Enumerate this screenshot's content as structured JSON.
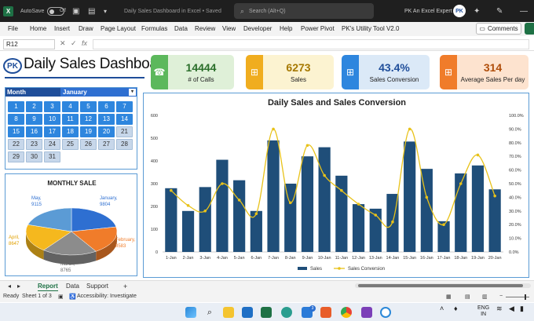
{
  "titlebar": {
    "autosave_label": "AutoSave",
    "autosave_state": "Off",
    "doc_title": "Daily Sales Dashboard in Excel • Saved",
    "search_placeholder": "Search (Alt+Q)",
    "user_name": "PK An Excel Expert",
    "avatar_initials": "PK"
  },
  "menu": {
    "items": [
      "File",
      "Home",
      "Insert",
      "Draw",
      "Page Layout",
      "Formulas",
      "Data",
      "Review",
      "View",
      "Developer",
      "Help",
      "Power Pivot",
      "PK's Utility Tool V2.0"
    ],
    "comments_label": "Comments"
  },
  "formula_bar": {
    "name_box": "R12",
    "cancel": "✕",
    "confirm": "✓",
    "fx": "fx",
    "value": ""
  },
  "dashboard": {
    "logo_text": "PK",
    "title": "Daily Sales Dashboard"
  },
  "kpis": [
    {
      "value": "14444",
      "label": "# of Calls",
      "color": "#5cb85c",
      "bg": "#dff0d8",
      "icon": "phone-agent-icon"
    },
    {
      "value": "6273",
      "label": "Sales",
      "color": "#f0ad1f",
      "bg": "#fcf3d1",
      "icon": "cart-icon"
    },
    {
      "value": "43.4%",
      "label": "Sales Conversion",
      "color": "#2e86de",
      "bg": "#dbe9f7",
      "icon": "cart-icon"
    },
    {
      "value": "314",
      "label": "Average Sales Per day",
      "color": "#f07c2a",
      "bg": "#fde3cf",
      "icon": "cart-icon"
    }
  ],
  "calendar": {
    "month_label": "Month",
    "month_value": "January",
    "filter_icon": "▾",
    "days": [
      "1",
      "2",
      "3",
      "4",
      "5",
      "6",
      "7",
      "8",
      "9",
      "10",
      "11",
      "12",
      "13",
      "14",
      "15",
      "16",
      "17",
      "18",
      "19",
      "20",
      "21",
      "22",
      "23",
      "24",
      "25",
      "26",
      "27",
      "28",
      "29",
      "30",
      "31"
    ],
    "active_days": 20
  },
  "monthly_sale": {
    "title": "MONTHLY SALE",
    "slices": [
      {
        "name": "January",
        "value": 9804,
        "color": "#2e6fd1"
      },
      {
        "name": "February",
        "value": 8583,
        "color": "#f07c2a"
      },
      {
        "name": "March",
        "value": 8765,
        "color": "#8c8c8c"
      },
      {
        "name": "April",
        "value": 8647,
        "color": "#f5b81e"
      },
      {
        "name": "May",
        "value": 9115,
        "color": "#5b9bd5"
      }
    ],
    "labels": [
      {
        "line1": "May,",
        "line2": "9115"
      },
      {
        "line1": "January,",
        "line2": "9804"
      },
      {
        "line1": "February,",
        "line2": "8583"
      },
      {
        "line1": "March,",
        "line2": "8765"
      },
      {
        "line1": "April,",
        "line2": "8647"
      }
    ]
  },
  "chart_data": {
    "type": "bar",
    "title": "Daily Sales and Sales Conversion",
    "categories": [
      "1-Jan",
      "2-Jan",
      "3-Jan",
      "4-Jan",
      "5-Jan",
      "6-Jan",
      "7-Jan",
      "8-Jan",
      "9-Jan",
      "10-Jan",
      "11-Jan",
      "12-Jan",
      "13-Jan",
      "14-Jan",
      "15-Jan",
      "16-Jan",
      "17-Jan",
      "18-Jan",
      "19-Jan",
      "20-Jan"
    ],
    "series": [
      {
        "name": "Sales",
        "kind": "bar",
        "axis": "left",
        "color": "#1f4e79",
        "values": [
          280,
          180,
          285,
          405,
          315,
          180,
          490,
          300,
          420,
          460,
          335,
          210,
          190,
          255,
          485,
          365,
          135,
          345,
          380,
          275
        ]
      },
      {
        "name": "Sales Conversion",
        "kind": "line",
        "axis": "right",
        "color": "#e8c21a",
        "values": [
          0.45,
          0.34,
          0.3,
          0.5,
          0.38,
          0.28,
          0.9,
          0.36,
          0.78,
          0.56,
          0.45,
          0.35,
          0.27,
          0.22,
          0.9,
          0.4,
          0.2,
          0.5,
          0.71,
          0.41
        ]
      }
    ],
    "ylim_left": [
      0,
      600
    ],
    "yticks_left": [
      "0",
      "100",
      "200",
      "300",
      "400",
      "500",
      "600"
    ],
    "ylim_right": [
      0,
      1.0
    ],
    "yticks_right": [
      "0.0%",
      "10.0%",
      "20.0%",
      "30.0%",
      "40.0%",
      "50.0%",
      "60.0%",
      "70.0%",
      "80.0%",
      "90.0%",
      "100.0%"
    ],
    "legend_position": "bottom",
    "grid": false
  },
  "sheet_tabs": {
    "tabs": [
      "Report",
      "Data",
      "Support"
    ],
    "active": "Report",
    "add": "+"
  },
  "status": {
    "ready": "Ready",
    "sheet_info": "Sheet 1 of 3",
    "accessibility": "Accessibility: Investigate"
  },
  "taskbar": {
    "lang_top": "ENG",
    "lang_bottom": "IN",
    "notification_count": "3"
  }
}
